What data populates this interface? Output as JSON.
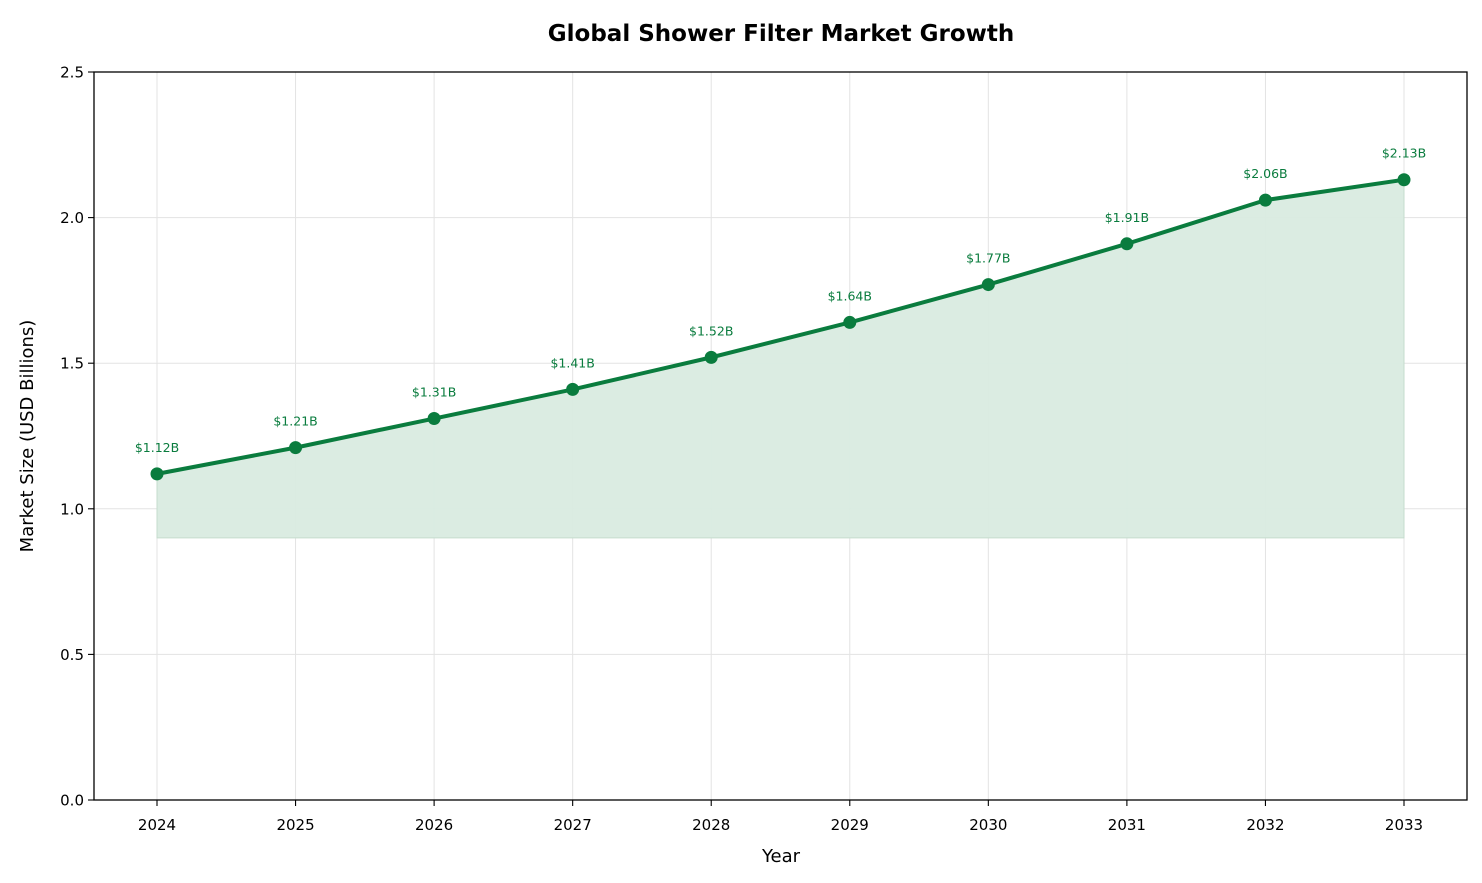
{
  "chart_data": {
    "type": "area",
    "title": "Global Shower Filter Market Growth",
    "xlabel": "Year",
    "ylabel": "Market Size (USD Billions)",
    "x": [
      2024,
      2025,
      2026,
      2027,
      2028,
      2029,
      2030,
      2031,
      2032,
      2033
    ],
    "x_tick_labels": [
      "2024",
      "2025",
      "2026",
      "2027",
      "2028",
      "2029",
      "2030",
      "2031",
      "2032",
      "2033"
    ],
    "series": [
      {
        "values": [
          1.12,
          1.21,
          1.31,
          1.41,
          1.52,
          1.64,
          1.77,
          1.91,
          2.06,
          2.13
        ],
        "data_labels": [
          "$1.12B",
          "$1.21B",
          "$1.31B",
          "$1.41B",
          "$1.52B",
          "$1.64B",
          "$1.77B",
          "$1.91B",
          "$2.06B",
          "$2.13B"
        ]
      }
    ],
    "fill_baseline": 0.9,
    "ylim": [
      0,
      2.5
    ],
    "y_ticks": [
      0.0,
      0.5,
      1.0,
      1.5,
      2.0,
      2.5
    ],
    "y_tick_labels": [
      "0.0",
      "0.5",
      "1.0",
      "1.5",
      "2.0",
      "2.5"
    ],
    "grid": true,
    "colors": {
      "line": "#0a7c3e",
      "fill": "#d9ebe0",
      "label": "#0a7c3e",
      "grid": "#e3e3e3"
    }
  }
}
